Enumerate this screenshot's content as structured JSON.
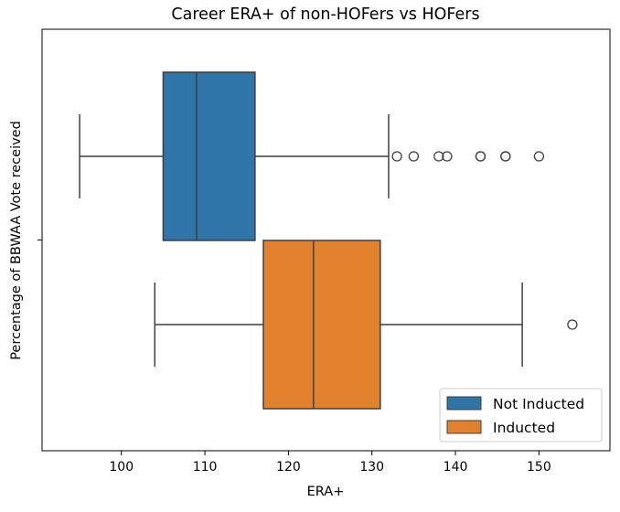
{
  "chart_data": {
    "type": "boxplot",
    "orientation": "horizontal",
    "title": "Career ERA+ of non-HOFers vs HOFers",
    "xlabel": "ERA+",
    "ylabel": "Percentage of BBWAA Vote received",
    "xlim": [
      90.5,
      158.5
    ],
    "xticks": [
      100,
      110,
      120,
      130,
      140,
      150
    ],
    "xtick_labels": [
      "100",
      "110",
      "120",
      "130",
      "140",
      "150"
    ],
    "grid": false,
    "legend_position": "bottom-right",
    "series": [
      {
        "name": "Not Inducted",
        "color": "#2f75a8",
        "whisker_low": 95,
        "q1": 105,
        "median": 109,
        "q3": 116,
        "whisker_high": 132,
        "outliers": [
          133,
          135,
          138,
          139,
          143,
          143,
          146,
          146,
          150
        ]
      },
      {
        "name": "Inducted",
        "color": "#e1812b",
        "whisker_low": 104,
        "q1": 117,
        "median": 123,
        "q3": 131,
        "whisker_high": 148,
        "outliers": [
          154
        ]
      }
    ]
  }
}
